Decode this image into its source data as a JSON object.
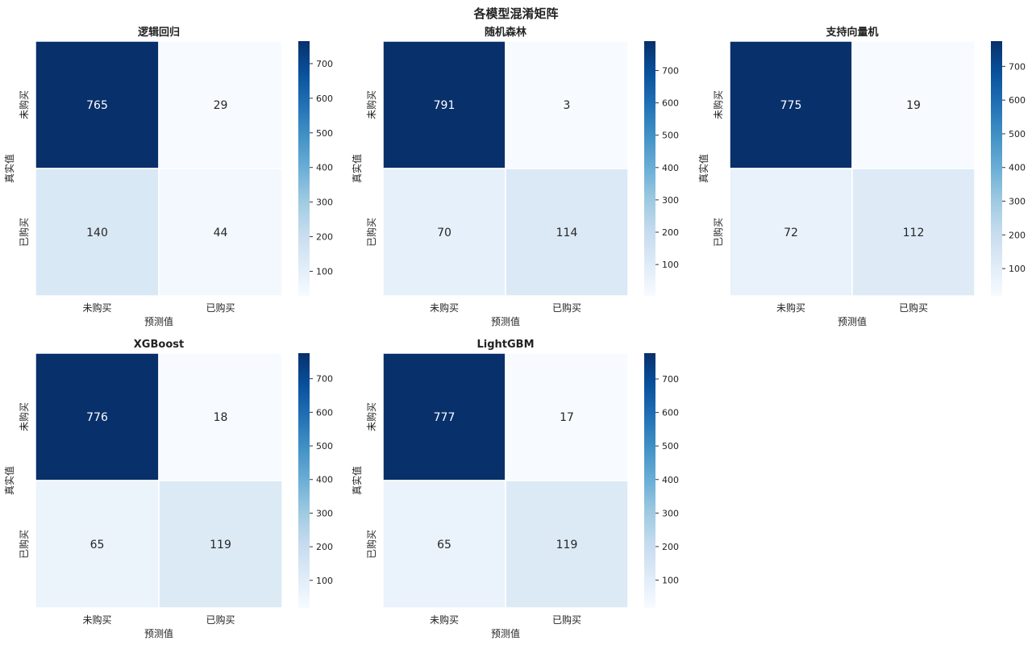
{
  "figure": {
    "title": "各模型混淆矩阵",
    "colormap": "Blues"
  },
  "chart_data": [
    {
      "type": "heatmap",
      "title": "逻辑回归",
      "x_categories": [
        "未购买",
        "已购买"
      ],
      "y_categories": [
        "未购买",
        "已购买"
      ],
      "xlabel": "预测值",
      "ylabel": "真实值",
      "matrix": [
        [
          765,
          29
        ],
        [
          140,
          44
        ]
      ],
      "colorbar_ticks": [
        100,
        200,
        300,
        400,
        500,
        600,
        700
      ],
      "colorbar_range": [
        29,
        765
      ]
    },
    {
      "type": "heatmap",
      "title": "随机森林",
      "x_categories": [
        "未购买",
        "已购买"
      ],
      "y_categories": [
        "未购买",
        "已购买"
      ],
      "xlabel": "预测值",
      "ylabel": "真实值",
      "matrix": [
        [
          791,
          3
        ],
        [
          70,
          114
        ]
      ],
      "colorbar_ticks": [
        100,
        200,
        300,
        400,
        500,
        600,
        700
      ],
      "colorbar_range": [
        3,
        791
      ]
    },
    {
      "type": "heatmap",
      "title": "支持向量机",
      "x_categories": [
        "未购买",
        "已购买"
      ],
      "y_categories": [
        "未购买",
        "已购买"
      ],
      "xlabel": "预测值",
      "ylabel": "真实值",
      "matrix": [
        [
          775,
          19
        ],
        [
          72,
          112
        ]
      ],
      "colorbar_ticks": [
        100,
        200,
        300,
        400,
        500,
        600,
        700
      ],
      "colorbar_range": [
        19,
        775
      ]
    },
    {
      "type": "heatmap",
      "title": "XGBoost",
      "x_categories": [
        "未购买",
        "已购买"
      ],
      "y_categories": [
        "未购买",
        "已购买"
      ],
      "xlabel": "预测值",
      "ylabel": "真实值",
      "matrix": [
        [
          776,
          18
        ],
        [
          65,
          119
        ]
      ],
      "colorbar_ticks": [
        100,
        200,
        300,
        400,
        500,
        600,
        700
      ],
      "colorbar_range": [
        18,
        776
      ]
    },
    {
      "type": "heatmap",
      "title": "LightGBM",
      "x_categories": [
        "未购买",
        "已购买"
      ],
      "y_categories": [
        "未购买",
        "已购买"
      ],
      "xlabel": "预测值",
      "ylabel": "真实值",
      "matrix": [
        [
          777,
          17
        ],
        [
          65,
          119
        ]
      ],
      "colorbar_ticks": [
        100,
        200,
        300,
        400,
        500,
        600,
        700
      ],
      "colorbar_range": [
        17,
        777
      ]
    }
  ]
}
